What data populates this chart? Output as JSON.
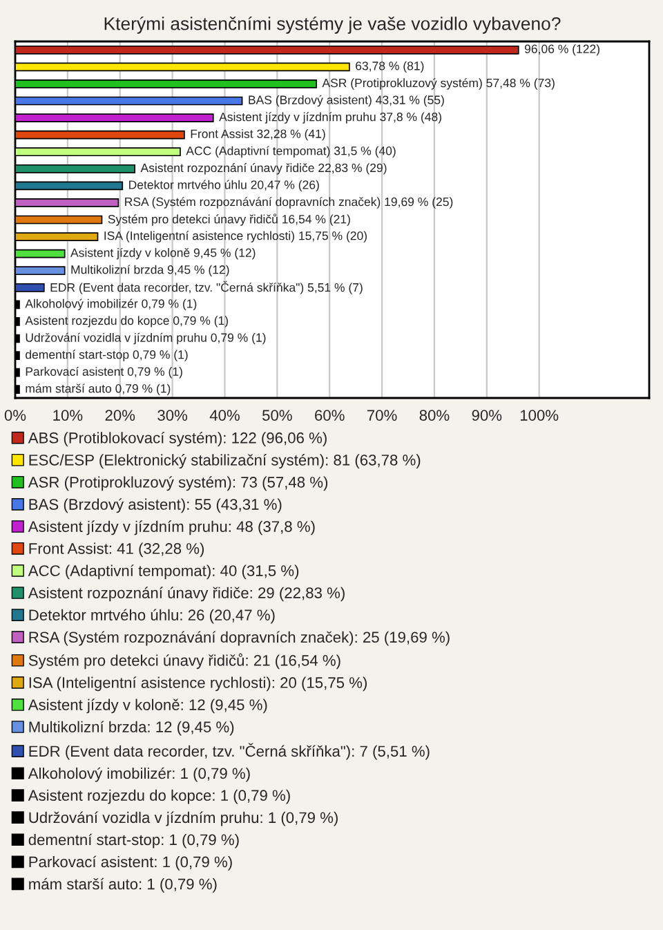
{
  "chart_data": {
    "type": "bar",
    "orientation": "horizontal",
    "title": "Kterými asistenčními systémy je vaše vozidlo vybaveno?",
    "categories": [
      null,
      null,
      null,
      null,
      null,
      null,
      null,
      null,
      null,
      null,
      null,
      null,
      null,
      null,
      null,
      null,
      null,
      null,
      null,
      null,
      null
    ],
    "series": [
      {
        "name": "ABS (Protiblokovací systém): 122 (96,06 %)",
        "color": "#c0281c",
        "values": [
          96.06,
          null,
          null,
          null,
          null,
          null,
          null,
          null,
          null,
          null,
          null,
          null,
          null,
          null,
          null,
          null,
          null,
          null,
          null,
          null,
          null
        ],
        "value_labels": [
          "96,06 % (122)",
          null,
          null,
          null,
          null,
          null,
          null,
          null,
          null,
          null,
          null,
          null,
          null,
          null,
          null,
          null,
          null,
          null,
          null,
          null,
          null
        ]
      },
      {
        "name": "ESC/ESP (Elektronický stabilizační systém): 81 (63,78 %)",
        "color": "#ffe600",
        "values": [
          null,
          63.78,
          null,
          null,
          null,
          null,
          null,
          null,
          null,
          null,
          null,
          null,
          null,
          null,
          null,
          null,
          null,
          null,
          null,
          null,
          null
        ],
        "value_labels": [
          null,
          "63,78 % (81)",
          null,
          null,
          null,
          null,
          null,
          null,
          null,
          null,
          null,
          null,
          null,
          null,
          null,
          null,
          null,
          null,
          null,
          null,
          null
        ]
      },
      {
        "name": "ASR (Protiprokluzový systém): 73 (57,48 %)",
        "color": "#20c020",
        "values": [
          null,
          null,
          57.48,
          null,
          null,
          null,
          null,
          null,
          null,
          null,
          null,
          null,
          null,
          null,
          null,
          null,
          null,
          null,
          null,
          null,
          null
        ],
        "value_labels": [
          null,
          null,
          "ASR (Protiprokluzový systém) 57,48 % (73)",
          null,
          null,
          null,
          null,
          null,
          null,
          null,
          null,
          null,
          null,
          null,
          null,
          null,
          null,
          null,
          null,
          null,
          null
        ]
      },
      {
        "name": "BAS (Brzdový asistent): 55 (43,31 %)",
        "color": "#4878e8",
        "values": [
          null,
          null,
          null,
          43.31,
          null,
          null,
          null,
          null,
          null,
          null,
          null,
          null,
          null,
          null,
          null,
          null,
          null,
          null,
          null,
          null,
          null
        ],
        "value_labels": [
          null,
          null,
          null,
          "BAS (Brzdový asistent) 43,31 % (55)",
          null,
          null,
          null,
          null,
          null,
          null,
          null,
          null,
          null,
          null,
          null,
          null,
          null,
          null,
          null,
          null,
          null
        ]
      },
      {
        "name": "Asistent jízdy v jízdním pruhu: 48 (37,8 %)",
        "color": "#c020d0",
        "values": [
          null,
          null,
          null,
          null,
          37.8,
          null,
          null,
          null,
          null,
          null,
          null,
          null,
          null,
          null,
          null,
          null,
          null,
          null,
          null,
          null,
          null
        ],
        "value_labels": [
          null,
          null,
          null,
          null,
          "Asistent jízdy v jízdním pruhu 37,8 % (48)",
          null,
          null,
          null,
          null,
          null,
          null,
          null,
          null,
          null,
          null,
          null,
          null,
          null,
          null,
          null,
          null
        ]
      },
      {
        "name": "Front Assist: 41 (32,28 %)",
        "color": "#e04810",
        "values": [
          null,
          null,
          null,
          null,
          null,
          32.28,
          null,
          null,
          null,
          null,
          null,
          null,
          null,
          null,
          null,
          null,
          null,
          null,
          null,
          null,
          null
        ],
        "value_labels": [
          null,
          null,
          null,
          null,
          null,
          "Front Assist 32,28 % (41)",
          null,
          null,
          null,
          null,
          null,
          null,
          null,
          null,
          null,
          null,
          null,
          null,
          null,
          null,
          null
        ]
      },
      {
        "name": "ACC (Adaptivní tempomat): 40 (31,5 %)",
        "color": "#c0ff80",
        "values": [
          null,
          null,
          null,
          null,
          null,
          null,
          31.5,
          null,
          null,
          null,
          null,
          null,
          null,
          null,
          null,
          null,
          null,
          null,
          null,
          null,
          null
        ],
        "value_labels": [
          null,
          null,
          null,
          null,
          null,
          null,
          "ACC (Adaptivní tempomat) 31,5 % (40)",
          null,
          null,
          null,
          null,
          null,
          null,
          null,
          null,
          null,
          null,
          null,
          null,
          null,
          null
        ]
      },
      {
        "name": "Asistent rozpoznání únavy řidiče: 29 (22,83 %)",
        "color": "#20906a",
        "values": [
          null,
          null,
          null,
          null,
          null,
          null,
          null,
          22.83,
          null,
          null,
          null,
          null,
          null,
          null,
          null,
          null,
          null,
          null,
          null,
          null,
          null
        ],
        "value_labels": [
          null,
          null,
          null,
          null,
          null,
          null,
          null,
          "Asistent rozpoznání únavy řidiče 22,83 % (29)",
          null,
          null,
          null,
          null,
          null,
          null,
          null,
          null,
          null,
          null,
          null,
          null,
          null
        ]
      },
      {
        "name": "Detektor mrtvého úhlu: 26 (20,47 %)",
        "color": "#207890",
        "values": [
          null,
          null,
          null,
          null,
          null,
          null,
          null,
          null,
          20.47,
          null,
          null,
          null,
          null,
          null,
          null,
          null,
          null,
          null,
          null,
          null,
          null
        ],
        "value_labels": [
          null,
          null,
          null,
          null,
          null,
          null,
          null,
          null,
          "Detektor mrtvého úhlu 20,47 % (26)",
          null,
          null,
          null,
          null,
          null,
          null,
          null,
          null,
          null,
          null,
          null,
          null
        ]
      },
      {
        "name": "RSA (Systém rozpoznávání dopravních značek): 25 (19,69 %)",
        "color": "#c060c0",
        "values": [
          null,
          null,
          null,
          null,
          null,
          null,
          null,
          null,
          null,
          19.69,
          null,
          null,
          null,
          null,
          null,
          null,
          null,
          null,
          null,
          null,
          null
        ],
        "value_labels": [
          null,
          null,
          null,
          null,
          null,
          null,
          null,
          null,
          null,
          "RSA (Systém rozpoznávání dopravních značek) 19,69 % (25)",
          null,
          null,
          null,
          null,
          null,
          null,
          null,
          null,
          null,
          null,
          null
        ]
      },
      {
        "name": "Systém pro detekci únavy řidičů: 21 (16,54 %)",
        "color": "#e07810",
        "values": [
          null,
          null,
          null,
          null,
          null,
          null,
          null,
          null,
          null,
          null,
          16.54,
          null,
          null,
          null,
          null,
          null,
          null,
          null,
          null,
          null,
          null
        ],
        "value_labels": [
          null,
          null,
          null,
          null,
          null,
          null,
          null,
          null,
          null,
          null,
          "Systém pro detekci únavy řidičů 16,54 % (21)",
          null,
          null,
          null,
          null,
          null,
          null,
          null,
          null,
          null,
          null
        ]
      },
      {
        "name": "ISA (Inteligentní asistence rychlosti): 20 (15,75 %)",
        "color": "#e0a810",
        "values": [
          null,
          null,
          null,
          null,
          null,
          null,
          null,
          null,
          null,
          null,
          null,
          15.75,
          null,
          null,
          null,
          null,
          null,
          null,
          null,
          null,
          null
        ],
        "value_labels": [
          null,
          null,
          null,
          null,
          null,
          null,
          null,
          null,
          null,
          null,
          null,
          "ISA (Inteligentní asistence rychlosti) 15,75 % (20)",
          null,
          null,
          null,
          null,
          null,
          null,
          null,
          null,
          null
        ]
      },
      {
        "name": "Asistent jízdy v koloně: 12 (9,45 %)",
        "color": "#50e040",
        "values": [
          null,
          null,
          null,
          null,
          null,
          null,
          null,
          null,
          null,
          null,
          null,
          null,
          9.45,
          null,
          null,
          null,
          null,
          null,
          null,
          null,
          null
        ],
        "value_labels": [
          null,
          null,
          null,
          null,
          null,
          null,
          null,
          null,
          null,
          null,
          null,
          null,
          "Asistent jízdy v koloně 9,45 % (12)",
          null,
          null,
          null,
          null,
          null,
          null,
          null,
          null
        ]
      },
      {
        "name": "Multikolizní brzda: 12 (9,45 %)",
        "color": "#6890e0",
        "values": [
          null,
          null,
          null,
          null,
          null,
          null,
          null,
          null,
          null,
          null,
          null,
          null,
          null,
          9.45,
          null,
          null,
          null,
          null,
          null,
          null,
          null
        ],
        "value_labels": [
          null,
          null,
          null,
          null,
          null,
          null,
          null,
          null,
          null,
          null,
          null,
          null,
          null,
          "Multikolizní brzda 9,45 % (12)",
          null,
          null,
          null,
          null,
          null,
          null,
          null
        ]
      },
      {
        "name": "EDR (Event data recorder, tzv. \"Černá skříňka\"): 7 (5,51 %)",
        "color": "#3050b0",
        "values": [
          null,
          null,
          null,
          null,
          null,
          null,
          null,
          null,
          null,
          null,
          null,
          null,
          null,
          null,
          5.51,
          null,
          null,
          null,
          null,
          null,
          null
        ],
        "value_labels": [
          null,
          null,
          null,
          null,
          null,
          null,
          null,
          null,
          null,
          null,
          null,
          null,
          null,
          null,
          "EDR (Event data recorder, tzv. \"Černá skříňka\") 5,51 % (7)",
          null,
          null,
          null,
          null,
          null,
          null
        ]
      },
      {
        "name": "Alkoholový imobilizér: 1 (0,79 %)",
        "color": "#000000",
        "values": [
          null,
          null,
          null,
          null,
          null,
          null,
          null,
          null,
          null,
          null,
          null,
          null,
          null,
          null,
          null,
          0.79,
          null,
          null,
          null,
          null,
          null
        ],
        "value_labels": [
          null,
          null,
          null,
          null,
          null,
          null,
          null,
          null,
          null,
          null,
          null,
          null,
          null,
          null,
          null,
          "Alkoholový imobilizér 0,79 % (1)",
          null,
          null,
          null,
          null,
          null
        ]
      },
      {
        "name": "Asistent rozjezdu do kopce: 1 (0,79 %)",
        "color": "#000000",
        "values": [
          null,
          null,
          null,
          null,
          null,
          null,
          null,
          null,
          null,
          null,
          null,
          null,
          null,
          null,
          null,
          null,
          0.79,
          null,
          null,
          null,
          null
        ],
        "value_labels": [
          null,
          null,
          null,
          null,
          null,
          null,
          null,
          null,
          null,
          null,
          null,
          null,
          null,
          null,
          null,
          null,
          "Asistent rozjezdu do kopce 0,79 % (1)",
          null,
          null,
          null,
          null
        ]
      },
      {
        "name": "Udržování vozidla v jízdním pruhu: 1 (0,79 %)",
        "color": "#000000",
        "values": [
          null,
          null,
          null,
          null,
          null,
          null,
          null,
          null,
          null,
          null,
          null,
          null,
          null,
          null,
          null,
          null,
          null,
          0.79,
          null,
          null,
          null
        ],
        "value_labels": [
          null,
          null,
          null,
          null,
          null,
          null,
          null,
          null,
          null,
          null,
          null,
          null,
          null,
          null,
          null,
          null,
          null,
          "Udržování vozidla v jízdním pruhu 0,79 % (1)",
          null,
          null,
          null
        ]
      },
      {
        "name": "dementní start-stop: 1 (0,79 %)",
        "color": "#000000",
        "values": [
          null,
          null,
          null,
          null,
          null,
          null,
          null,
          null,
          null,
          null,
          null,
          null,
          null,
          null,
          null,
          null,
          null,
          null,
          0.79,
          null,
          null
        ],
        "value_labels": [
          null,
          null,
          null,
          null,
          null,
          null,
          null,
          null,
          null,
          null,
          null,
          null,
          null,
          null,
          null,
          null,
          null,
          null,
          "dementní start-stop 0,79 % (1)",
          null,
          null
        ]
      },
      {
        "name": "Parkovací asistent: 1 (0,79 %)",
        "color": "#000000",
        "values": [
          null,
          null,
          null,
          null,
          null,
          null,
          null,
          null,
          null,
          null,
          null,
          null,
          null,
          null,
          null,
          null,
          null,
          null,
          null,
          0.79,
          null
        ],
        "value_labels": [
          null,
          null,
          null,
          null,
          null,
          null,
          null,
          null,
          null,
          null,
          null,
          null,
          null,
          null,
          null,
          null,
          null,
          null,
          null,
          "Parkovací asistent 0,79 % (1)",
          null
        ]
      },
      {
        "name": "mám starší auto: 1 (0,79 %)",
        "color": "#000000",
        "values": [
          null,
          null,
          null,
          null,
          null,
          null,
          null,
          null,
          null,
          null,
          null,
          null,
          null,
          null,
          null,
          null,
          null,
          null,
          null,
          null,
          0.79
        ],
        "value_labels": [
          null,
          null,
          null,
          null,
          null,
          null,
          null,
          null,
          null,
          null,
          null,
          null,
          null,
          null,
          null,
          null,
          null,
          null,
          null,
          null,
          "mám starší auto 0,79 % (1)"
        ]
      }
    ],
    "xlim": [
      0,
      121
    ],
    "xticks": [
      {
        "value": 0,
        "label": "0%"
      },
      {
        "value": 10,
        "label": "10%"
      },
      {
        "value": 20,
        "label": "20%"
      },
      {
        "value": 30,
        "label": "30%"
      },
      {
        "value": 40,
        "label": "40%"
      },
      {
        "value": 50,
        "label": "50%"
      },
      {
        "value": 60,
        "label": "60%"
      },
      {
        "value": 70,
        "label": "70%"
      },
      {
        "value": 80,
        "label": "80%"
      },
      {
        "value": 90,
        "label": "90%"
      },
      {
        "value": 100,
        "label": "100%"
      }
    ],
    "grid": "x",
    "legend": "bottom"
  }
}
